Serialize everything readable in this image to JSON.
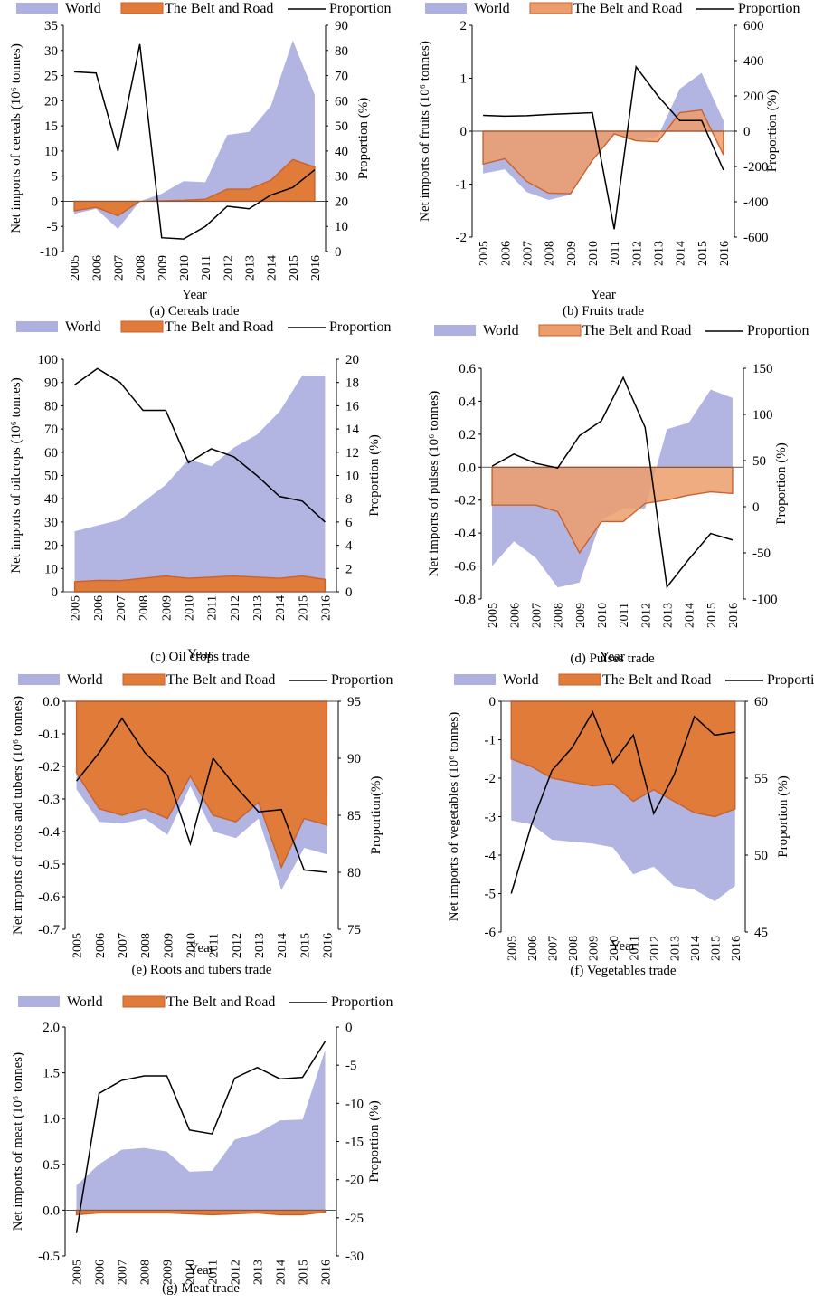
{
  "chart_data": [
    {
      "type": "area",
      "title": "(a) Cereals trade",
      "xlabel": "Year",
      "ylabel": "Net imports of cereals (10⁶ tonnes)",
      "y2label": "Proportion (%)",
      "x": [
        "2005",
        "2006",
        "2007",
        "2008",
        "2009",
        "2010",
        "2011",
        "2012",
        "2013",
        "2014",
        "2015",
        "2016"
      ],
      "ylim": [
        -10,
        35
      ],
      "yticks": [
        -10,
        -5,
        0,
        5,
        10,
        15,
        20,
        25,
        30,
        35
      ],
      "y2lim": [
        0,
        90
      ],
      "y2ticks": [
        0,
        10,
        20,
        30,
        40,
        50,
        60,
        70,
        80,
        90
      ],
      "series": [
        {
          "name": "World",
          "axis": "left",
          "kind": "area",
          "values": [
            -2.5,
            -1.5,
            -5.5,
            0.0,
            1.5,
            4.0,
            3.8,
            13.2,
            13.8,
            19.0,
            32.0,
            21.2
          ]
        },
        {
          "name": "The Belt and Road",
          "axis": "left",
          "kind": "area",
          "values": [
            -1.9,
            -1.2,
            -2.9,
            0.0,
            0.1,
            0.2,
            0.4,
            2.4,
            2.4,
            4.2,
            8.3,
            6.8
          ]
        },
        {
          "name": "Proportion",
          "axis": "right",
          "kind": "line",
          "values": [
            71.5,
            71.0,
            40.0,
            82.5,
            5.5,
            5.0,
            10.0,
            18.0,
            17.0,
            22.5,
            25.5,
            32.5
          ]
        }
      ]
    },
    {
      "type": "area",
      "title": "(b) Fruits trade",
      "xlabel": "Year",
      "ylabel": "Net imports of fruits (10⁶ tonnes)",
      "y2label": "Proportion (%)",
      "x": [
        "2005",
        "2006",
        "2007",
        "2008",
        "2009",
        "2010",
        "2011",
        "2012",
        "2013",
        "2014",
        "2015",
        "2016"
      ],
      "ylim": [
        -2,
        2
      ],
      "yticks": [
        -2,
        -1,
        0,
        1,
        2
      ],
      "y2lim": [
        -600,
        600
      ],
      "y2ticks": [
        -600,
        -400,
        -200,
        0,
        200,
        400,
        600
      ],
      "series": [
        {
          "name": "World",
          "axis": "left",
          "kind": "area",
          "values": [
            -0.8,
            -0.72,
            -1.15,
            -1.3,
            -1.2,
            -0.55,
            -0.05,
            -0.18,
            -0.1,
            0.8,
            1.1,
            0.2
          ]
        },
        {
          "name": "The Belt and Road",
          "axis": "left",
          "kind": "area",
          "values": [
            -0.62,
            -0.52,
            -0.95,
            -1.17,
            -1.18,
            -0.55,
            -0.05,
            -0.18,
            -0.2,
            0.35,
            0.4,
            -0.45
          ]
        },
        {
          "name": "Proportion",
          "axis": "right",
          "kind": "line",
          "values": [
            90,
            85,
            88,
            95,
            100,
            105,
            -555,
            365,
            200,
            60,
            60,
            -220
          ]
        }
      ]
    },
    {
      "type": "area",
      "title": "(c) Oil crops trade",
      "xlabel": "Year",
      "ylabel": "Net imports of oilcrops (10⁶ tonnes)",
      "y2label": "Proportion (%)",
      "x": [
        "2005",
        "2006",
        "2007",
        "2008",
        "2009",
        "2010",
        "2011",
        "2012",
        "2013",
        "2014",
        "2015",
        "2016"
      ],
      "ylim": [
        0,
        100
      ],
      "yticks": [
        0,
        10,
        20,
        30,
        40,
        50,
        60,
        70,
        80,
        90,
        100
      ],
      "y2lim": [
        0,
        20
      ],
      "y2ticks": [
        0,
        2,
        4,
        6,
        8,
        10,
        12,
        14,
        16,
        18,
        20
      ],
      "series": [
        {
          "name": "World",
          "axis": "left",
          "kind": "area",
          "values": [
            26,
            28.5,
            31,
            38.5,
            46,
            57,
            54,
            62,
            67.5,
            77.5,
            93,
            93
          ]
        },
        {
          "name": "The Belt and Road",
          "axis": "left",
          "kind": "area",
          "values": [
            4.3,
            4.9,
            4.8,
            5.8,
            6.8,
            5.8,
            6.3,
            6.8,
            6.3,
            5.8,
            6.8,
            5.3
          ]
        },
        {
          "name": "Proportion",
          "axis": "right",
          "kind": "line",
          "values": [
            17.8,
            19.2,
            18.0,
            15.6,
            15.6,
            11.1,
            12.3,
            11.6,
            10.0,
            8.2,
            7.8,
            6.0
          ]
        }
      ]
    },
    {
      "type": "area",
      "title": "(d) Pulses trade",
      "xlabel": "Year",
      "ylabel": "Net imports of pulses (10⁶ tonnes)",
      "y2label": "Proportion (%)",
      "x": [
        "2005",
        "2006",
        "2007",
        "2008",
        "2009",
        "2010",
        "2011",
        "2012",
        "2013",
        "2014",
        "2015",
        "2016"
      ],
      "ylim": [
        -0.8,
        0.6
      ],
      "yticks": [
        -0.8,
        -0.6,
        -0.4,
        -0.2,
        0,
        0.2,
        0.4,
        0.6
      ],
      "y2lim": [
        -100,
        150
      ],
      "y2ticks": [
        -100,
        -50,
        0,
        50,
        100,
        150
      ],
      "series": [
        {
          "name": "World",
          "axis": "left",
          "kind": "area",
          "values": [
            -0.6,
            -0.45,
            -0.55,
            -0.73,
            -0.7,
            -0.32,
            -0.25,
            -0.25,
            0.23,
            0.27,
            0.47,
            0.42
          ]
        },
        {
          "name": "The Belt and Road",
          "axis": "left",
          "kind": "area",
          "values": [
            -0.23,
            -0.23,
            -0.23,
            -0.27,
            -0.52,
            -0.33,
            -0.33,
            -0.22,
            -0.2,
            -0.17,
            -0.15,
            -0.16
          ]
        },
        {
          "name": "Proportion",
          "axis": "right",
          "kind": "line",
          "values": [
            44,
            57,
            47,
            42,
            77,
            93,
            140,
            86,
            -87,
            -57,
            -29,
            -36
          ]
        }
      ]
    },
    {
      "type": "area",
      "title": "(e) Roots and tubers trade",
      "xlabel": "Year",
      "ylabel": "Net imports of roots and tubers (10⁶ tonnes)",
      "y2label": "Proportion(%)",
      "x": [
        "2005",
        "2006",
        "2007",
        "2008",
        "2009",
        "2010",
        "2011",
        "2012",
        "2013",
        "2014",
        "2015",
        "2016"
      ],
      "ylim": [
        -0.7,
        0
      ],
      "yticks": [
        -0.7,
        -0.6,
        -0.5,
        -0.4,
        -0.3,
        -0.2,
        -0.1,
        0.0
      ],
      "y2lim": [
        75,
        95
      ],
      "y2ticks": [
        75,
        80,
        85,
        90,
        95
      ],
      "series": [
        {
          "name": "World",
          "axis": "left",
          "kind": "area",
          "values": [
            -0.27,
            -0.37,
            -0.375,
            -0.36,
            -0.41,
            -0.26,
            -0.4,
            -0.42,
            -0.36,
            -0.58,
            -0.45,
            -0.47
          ]
        },
        {
          "name": "The Belt and Road",
          "axis": "left",
          "kind": "area",
          "values": [
            -0.22,
            -0.33,
            -0.35,
            -0.33,
            -0.36,
            -0.23,
            -0.35,
            -0.37,
            -0.31,
            -0.51,
            -0.36,
            -0.38
          ]
        },
        {
          "name": "Proportion",
          "axis": "right",
          "kind": "line",
          "values": [
            88,
            90.5,
            93.5,
            90.5,
            88.5,
            82.5,
            90,
            87.5,
            85.3,
            85.5,
            80.2,
            80
          ]
        }
      ]
    },
    {
      "type": "area",
      "title": "(f) Vegetables trade",
      "xlabel": "Year",
      "ylabel": "Net imports of vegetables (10⁶ tonnes)",
      "y2label": "Proportion (%)",
      "x": [
        "2005",
        "2006",
        "2007",
        "2008",
        "2009",
        "2010",
        "2011",
        "2012",
        "2013",
        "2014",
        "2015",
        "2016"
      ],
      "ylim": [
        -6,
        0
      ],
      "yticks": [
        -6,
        -5,
        -4,
        -3,
        -2,
        -1,
        0
      ],
      "y2lim": [
        45,
        60
      ],
      "y2ticks": [
        45,
        50,
        55,
        60
      ],
      "series": [
        {
          "name": "World",
          "axis": "left",
          "kind": "area",
          "values": [
            -3.1,
            -3.2,
            -3.6,
            -3.65,
            -3.7,
            -3.8,
            -4.5,
            -4.3,
            -4.8,
            -4.9,
            -5.2,
            -4.8
          ]
        },
        {
          "name": "The Belt and Road",
          "axis": "left",
          "kind": "area",
          "values": [
            -1.5,
            -1.7,
            -2.0,
            -2.1,
            -2.2,
            -2.15,
            -2.6,
            -2.3,
            -2.6,
            -2.9,
            -3.0,
            -2.8
          ]
        },
        {
          "name": "Proportion",
          "axis": "right",
          "kind": "line",
          "values": [
            47.5,
            52,
            55.5,
            57,
            59.3,
            56,
            57.8,
            52.7,
            55.2,
            59,
            57.8,
            58
          ]
        }
      ]
    },
    {
      "type": "area",
      "title": "(g) Meat trade",
      "xlabel": "Year",
      "ylabel": "Net imports of meat (10⁶ tonnes)",
      "y2label": "Proportion (%)",
      "x": [
        "2005",
        "2006",
        "2007",
        "2008",
        "2009",
        "2010",
        "2011",
        "2012",
        "2013",
        "2014",
        "2015",
        "2016"
      ],
      "ylim": [
        -0.5,
        2
      ],
      "yticks": [
        -0.5,
        0,
        0.5,
        1,
        1.5,
        2
      ],
      "y2lim": [
        -30,
        0
      ],
      "y2ticks": [
        -30,
        -25,
        -20,
        -15,
        -10,
        -5,
        0
      ],
      "series": [
        {
          "name": "World",
          "axis": "left",
          "kind": "area",
          "values": [
            0.27,
            0.5,
            0.66,
            0.68,
            0.64,
            0.42,
            0.43,
            0.77,
            0.84,
            0.98,
            0.99,
            1.75
          ]
        },
        {
          "name": "The Belt and Road",
          "axis": "left",
          "kind": "area",
          "values": [
            -0.05,
            -0.03,
            -0.03,
            -0.03,
            -0.03,
            -0.04,
            -0.05,
            -0.04,
            -0.03,
            -0.05,
            -0.05,
            -0.02
          ]
        },
        {
          "name": "Proportion",
          "axis": "right",
          "kind": "line",
          "values": [
            -27,
            -8.7,
            -7,
            -6.4,
            -6.4,
            -13.5,
            -14,
            -6.7,
            -5.3,
            -6.8,
            -6.6,
            -1.9
          ]
        }
      ]
    }
  ],
  "legend_labels": {
    "world": "World",
    "belt": "The Belt and Road",
    "proportion": "Proportion"
  },
  "colors": {
    "world": "#aeb0e0",
    "belt_dark": "#e07b39",
    "belt_light": "#ed9d6b",
    "belt_stroke": "#c9622a",
    "proportion": "#000000"
  }
}
